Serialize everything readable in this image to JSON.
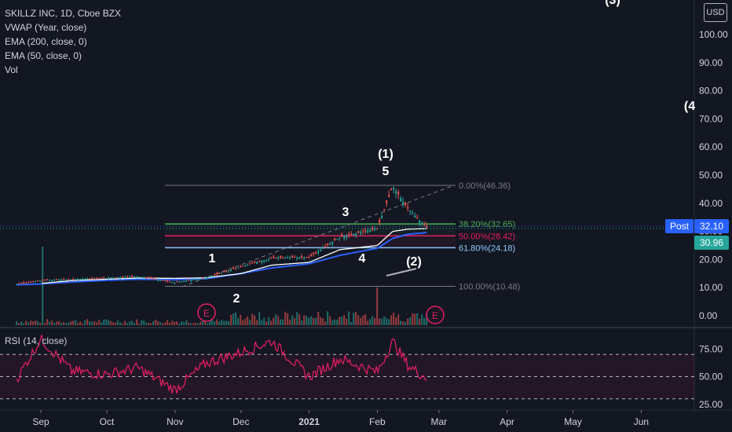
{
  "legend": {
    "symbol": "SKILLZ INC, 1D, Cboe BZX",
    "vwap": "VWAP (Year, close)",
    "ema200": "EMA (200, close, 0)",
    "ema50": "EMA (50, close, 0)",
    "vol": "Vol",
    "rsi": "RSI (14, close)"
  },
  "currency": "USD",
  "price_axis": [
    "100.00",
    "90.00",
    "80.00",
    "70.00",
    "60.00",
    "50.00",
    "40.00",
    "30.00",
    "20.00",
    "10.00",
    "0.00"
  ],
  "rsi_axis": [
    "75.00",
    "50.00",
    "25.00"
  ],
  "x_axis": [
    "Sep",
    "Oct",
    "Nov",
    "Dec",
    "2021",
    "Feb",
    "Mar",
    "Apr",
    "May",
    "Jun"
  ],
  "price_tags": {
    "post_label": "Post",
    "post_value": "32.10",
    "last_value": "30.96"
  },
  "fib_labels": [
    "0.00%(46.36)",
    "38.20%(32.65)",
    "50.00%(28.42)",
    "61.80%(24.18)",
    "100.00%(10.48)"
  ],
  "wave_labels": [
    "(1)",
    "5",
    "3",
    "1",
    "2",
    "4",
    "(2)",
    "(3)",
    "(4"
  ],
  "earnings_marker": "E",
  "colors": {
    "bg": "#131722",
    "up": "#26a69a",
    "down": "#ef5350",
    "vwap": "#ffffff",
    "ema50": "#2962ff",
    "fib382": "#4caf50",
    "fib50": "#e91e63",
    "fib618": "#90caf9",
    "rsi": "#e91e63"
  },
  "chart_data": [
    {
      "type": "candlestick",
      "title": "SKILLZ INC, 1D, Cboe BZX",
      "ylim": [
        -2,
        113
      ],
      "x": [
        "2020-08-21",
        "2020-09-01",
        "2020-09-15",
        "2020-10-01",
        "2020-10-15",
        "2020-11-01",
        "2020-11-15",
        "2020-12-01",
        "2020-12-15",
        "2021-01-01",
        "2021-01-15",
        "2021-02-01",
        "2021-02-08",
        "2021-02-15",
        "2021-02-24"
      ],
      "close": [
        11.2,
        12.5,
        13.0,
        13.4,
        14.0,
        11.8,
        13.5,
        17.5,
        20.5,
        20.8,
        28.0,
        31.0,
        46.0,
        38.0,
        30.96
      ],
      "vwap": [
        null,
        11.5,
        12.5,
        13.0,
        13.4,
        13.3,
        13.5,
        15.0,
        18.0,
        19.0,
        23.5,
        25.0,
        30.0,
        30.8,
        31.0
      ],
      "ema50": [
        11.0,
        11.3,
        12.0,
        12.6,
        13.0,
        12.8,
        13.2,
        15.0,
        17.0,
        18.5,
        21.5,
        24.0,
        27.5,
        29.0,
        29.6
      ],
      "fib": [
        {
          "level": "0.00%",
          "value": 46.36
        },
        {
          "level": "38.20%",
          "value": 32.65
        },
        {
          "level": "50.00%",
          "value": 28.42
        },
        {
          "level": "61.80%",
          "value": 24.18
        },
        {
          "level": "100.00%",
          "value": 10.48
        }
      ],
      "last_price": 30.96,
      "post_price": 32.1
    },
    {
      "type": "line",
      "title": "RSI (14, close)",
      "ylim": [
        22,
        90
      ],
      "x": [
        "2020-08-21",
        "2020-09-01",
        "2020-09-15",
        "2020-10-01",
        "2020-10-15",
        "2020-11-01",
        "2020-11-15",
        "2020-12-01",
        "2020-12-15",
        "2021-01-01",
        "2021-01-15",
        "2021-02-01",
        "2021-02-08",
        "2021-02-15",
        "2021-02-24"
      ],
      "values": [
        48,
        84,
        55,
        52,
        58,
        38,
        62,
        72,
        82,
        50,
        66,
        54,
        82,
        60,
        48
      ],
      "bands": [
        30,
        50,
        70
      ]
    }
  ]
}
